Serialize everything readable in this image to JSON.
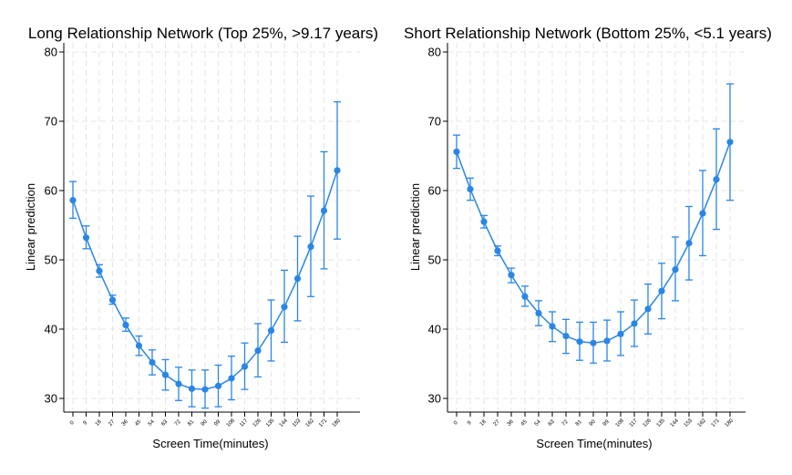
{
  "colors": {
    "series": "#2a86e6",
    "grid": "#e4e4e4",
    "axis": "#000000"
  },
  "chart_data": [
    {
      "type": "line",
      "title": "Long Relationship Network (Top 25%, >9.17 years)",
      "xlabel": "Screen Time(minutes)",
      "ylabel": "Linear prediction",
      "ylim": [
        30,
        80
      ],
      "yticks": [
        "30",
        "40",
        "50",
        "60",
        "70",
        "80"
      ],
      "grid": true,
      "x": [
        "0",
        "9",
        "18",
        "27",
        "36",
        "45",
        "54",
        "63",
        "72",
        "81",
        "90",
        "99",
        "108",
        "117",
        "126",
        "135",
        "144",
        "153",
        "162",
        "171",
        "180"
      ],
      "series": [
        {
          "values": [
            58.6,
            53.2,
            48.4,
            44.2,
            40.6,
            37.6,
            35.2,
            33.4,
            32.1,
            31.4,
            31.3,
            31.8,
            32.9,
            34.6,
            36.9,
            39.8,
            43.2,
            47.3,
            51.9,
            57.1,
            62.9
          ],
          "lower": [
            56.0,
            51.6,
            47.5,
            43.6,
            39.7,
            36.2,
            33.4,
            31.2,
            29.7,
            28.8,
            28.6,
            28.8,
            29.8,
            31.3,
            33.1,
            35.4,
            38.1,
            41.2,
            44.7,
            48.7,
            53.0
          ],
          "upper": [
            61.3,
            54.9,
            49.3,
            44.9,
            41.6,
            39.0,
            37.0,
            35.6,
            34.5,
            34.1,
            34.1,
            34.8,
            36.1,
            38.0,
            40.8,
            44.2,
            48.5,
            53.4,
            59.2,
            65.6,
            72.8
          ]
        }
      ]
    },
    {
      "type": "line",
      "title": "Short Relationship Network (Bottom 25%, <5.1 years)",
      "xlabel": "Screen Time(minutes)",
      "ylabel": "Linear prediction",
      "ylim": [
        30,
        80
      ],
      "yticks": [
        "30",
        "40",
        "50",
        "60",
        "70",
        "80"
      ],
      "grid": true,
      "x": [
        "0",
        "9",
        "18",
        "27",
        "36",
        "45",
        "54",
        "63",
        "72",
        "81",
        "90",
        "99",
        "108",
        "117",
        "126",
        "135",
        "144",
        "153",
        "162",
        "171",
        "180"
      ],
      "series": [
        {
          "values": [
            65.6,
            60.2,
            55.5,
            51.3,
            47.8,
            44.7,
            42.3,
            40.4,
            39.0,
            38.2,
            38.0,
            38.3,
            39.3,
            40.8,
            42.9,
            45.5,
            48.6,
            52.4,
            56.7,
            61.6,
            67.0
          ],
          "lower": [
            63.2,
            58.6,
            54.6,
            50.6,
            46.7,
            43.3,
            40.5,
            38.2,
            36.5,
            35.5,
            35.1,
            35.4,
            36.2,
            37.5,
            39.3,
            41.5,
            44.1,
            47.1,
            50.6,
            54.4,
            58.6
          ],
          "upper": [
            68.0,
            61.8,
            56.4,
            52.0,
            48.8,
            46.2,
            44.1,
            42.5,
            41.4,
            41.0,
            41.0,
            41.3,
            42.5,
            44.2,
            46.5,
            49.5,
            53.3,
            57.7,
            62.9,
            68.9,
            75.4
          ]
        }
      ]
    }
  ]
}
